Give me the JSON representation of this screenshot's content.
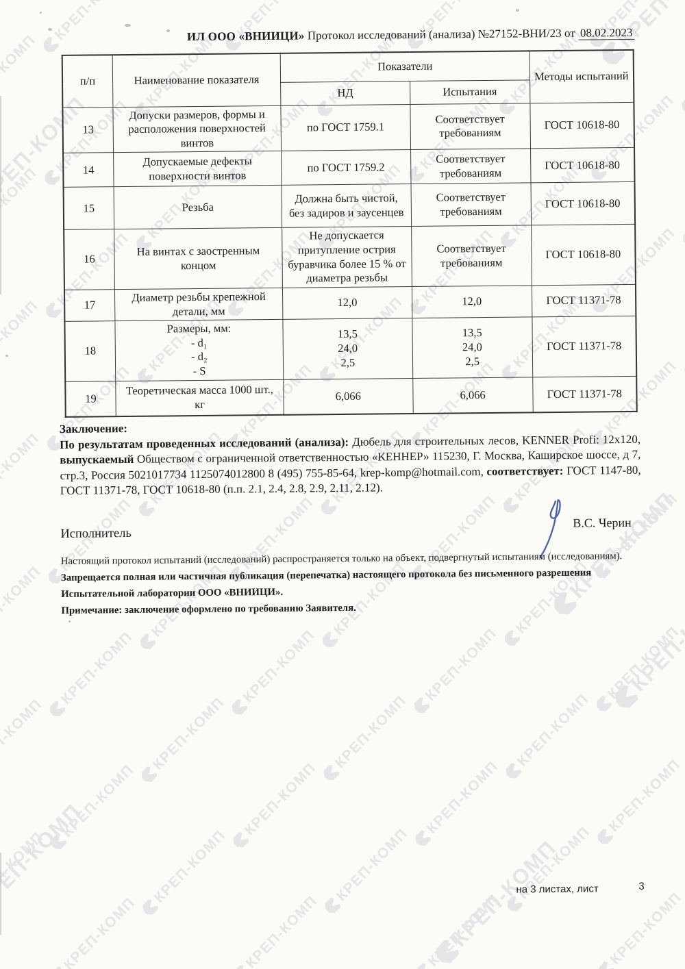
{
  "header": {
    "lab": "ИЛ ООО «ВНИИЦИ»",
    "title": "Протокол исследований (анализа)",
    "number": "№27152-ВНИ/23",
    "prep": "от",
    "date": "08.02.2023"
  },
  "table": {
    "col_headers": {
      "num": "п/п",
      "name": "Наименование показателя",
      "indicators": "Показатели",
      "nd": "НД",
      "test": "Испытания",
      "methods": "Методы испытаний"
    },
    "rows": [
      {
        "num": "13",
        "name": "Допуски размеров, формы и расположения поверхностей винтов",
        "nd": "по ГОСТ 1759.1",
        "test": "Соответствует требованиям",
        "method": "ГОСТ 10618-80"
      },
      {
        "num": "14",
        "name": "Допускаемые дефекты поверхности винтов",
        "nd": "по ГОСТ 1759.2",
        "test": "Соответствует требованиям",
        "method": "ГОСТ 10618-80"
      },
      {
        "num": "15",
        "name": "Резьба",
        "nd": "Должна быть чистой, без задиров и заусенцев",
        "test": "Соответствует требованиям",
        "method": "ГОСТ 10618-80"
      },
      {
        "num": "16",
        "name": "На винтах с заостренным концом",
        "nd": "Не допускается притупление острия буравчика более 15 % от диаметра резьбы",
        "test": "Соответствует требованиям",
        "method": "ГОСТ 10618-80"
      },
      {
        "num": "17",
        "name": "Диаметр резьбы крепежной детали, мм",
        "nd": "12,0",
        "test": "12,0",
        "method": "ГОСТ 11371-78"
      },
      {
        "num": "18",
        "name": "Размеры, мм:\n- d₁\n- d₂\n- S",
        "nd": "13,5\n24,0\n2,5",
        "test": "13,5\n24,0\n2,5",
        "method": "ГОСТ 11371-78"
      },
      {
        "num": "19",
        "name": "Теоретическая масса 1000 шт., кг",
        "nd": "6,066",
        "test": "6,066",
        "method": "ГОСТ 11371-78"
      }
    ]
  },
  "conclusion": {
    "heading": "Заключение:",
    "lead_bold": "По результатам проведенных исследований (анализа):",
    "text_1": " Дюбель для строительных лесов, KENNER Profi: 12х120, ",
    "bold_2": "выпускаемый",
    "text_2": " Обществом с ограниченной ответственностью «КЕННЕР»  115230, Г. Москва, Каширское шоссе, д 7, стр.3, Россия 5021017734 1125074012800 8 (495) 755-85-64, krep-komp@hotmail.com, ",
    "bold_3": "соответствует:",
    "text_3": " ГОСТ 1147-80, ГОСТ 11371-78, ГОСТ 10618-80 (п.п. 2.1, 2.4, 2.8, 2.9, 2.11, 2.12)."
  },
  "executor": {
    "label": "Исполнитель",
    "signature_name": "В.С. Черин"
  },
  "footnotes": {
    "line1": "Настоящий протокол испытаний (исследований) распространяется только на объект, подвергнутый испытаниям (исследованиям).",
    "line2": "Запрещается полная или частичная публикация (перепечатка) настоящего протокола без письменного разрешения Испытательной лаборатории  ООО «ВНИИЦИ».",
    "line3": "Примечание: заключение оформлено по требованию Заявителя."
  },
  "footer": {
    "sheets_text": "на 3  листах, лист",
    "page_number": "3"
  },
  "watermark": {
    "text": "КРЕП-КОМП",
    "color": "#e3e6e4"
  },
  "colors": {
    "signature_ink": "#3b54a3",
    "paper": "#fbfbf8",
    "text_ink": "#1d1d1d"
  }
}
